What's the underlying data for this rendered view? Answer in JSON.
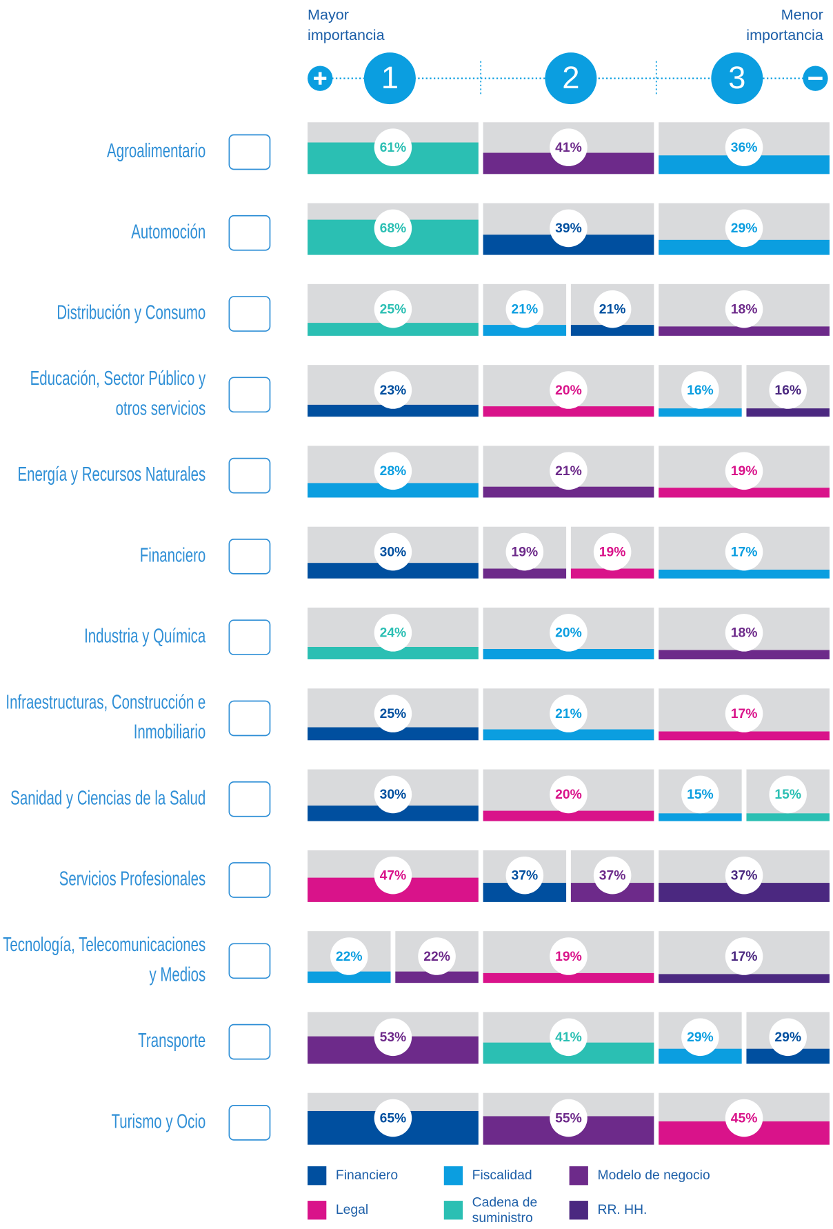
{
  "chart_data": {
    "type": "ranked-bars",
    "header": {
      "left": [
        "Mayor",
        "importancia"
      ],
      "right": [
        "Menor",
        "importancia"
      ]
    },
    "ranks": [
      "1",
      "2",
      "3"
    ],
    "ylim": [
      0,
      100
    ],
    "legend": [
      {
        "name": "Financiero",
        "color": "#004f9f"
      },
      {
        "name": "Fiscalidad",
        "color": "#0b9ee0"
      },
      {
        "name": "Modelo de negocio",
        "color": "#6d2a8a"
      },
      {
        "name": "Legal",
        "color": "#d9138a"
      },
      {
        "name": "Cadena de suministro",
        "color": "#2bbfb3"
      },
      {
        "name": "RR. HH.",
        "color": "#4b2880"
      }
    ],
    "rows": [
      {
        "name": [
          "Agroalimentario"
        ],
        "bars": [
          [
            {
              "category": "Cadena de suministro",
              "value": 61,
              "label": "61%"
            }
          ],
          [
            {
              "category": "Modelo de negocio",
              "value": 41,
              "label": "41%"
            }
          ],
          [
            {
              "category": "Fiscalidad",
              "value": 36,
              "label": "36%"
            }
          ]
        ]
      },
      {
        "name": [
          "Automoción"
        ],
        "bars": [
          [
            {
              "category": "Cadena de suministro",
              "value": 68,
              "label": "68%"
            }
          ],
          [
            {
              "category": "Financiero",
              "value": 39,
              "label": "39%"
            }
          ],
          [
            {
              "category": "Fiscalidad",
              "value": 29,
              "label": "29%"
            }
          ]
        ]
      },
      {
        "name": [
          "Distribución y Consumo"
        ],
        "bars": [
          [
            {
              "category": "Cadena de suministro",
              "value": 25,
              "label": "25%"
            }
          ],
          [
            {
              "category": "Fiscalidad",
              "value": 21,
              "label": "21%"
            },
            {
              "category": "Financiero",
              "value": 21,
              "label": "21%"
            }
          ],
          [
            {
              "category": "Modelo de negocio",
              "value": 18,
              "label": "18%"
            }
          ]
        ]
      },
      {
        "name": [
          "Educación, Sector Público y",
          "otros servicios"
        ],
        "bars": [
          [
            {
              "category": "Financiero",
              "value": 23,
              "label": "23%"
            }
          ],
          [
            {
              "category": "Legal",
              "value": 20,
              "label": "20%"
            }
          ],
          [
            {
              "category": "Fiscalidad",
              "value": 16,
              "label": "16%"
            },
            {
              "category": "RR. HH.",
              "value": 16,
              "label": "16%"
            }
          ]
        ]
      },
      {
        "name": [
          "Energía y Recursos Naturales"
        ],
        "bars": [
          [
            {
              "category": "Fiscalidad",
              "value": 28,
              "label": "28%"
            }
          ],
          [
            {
              "category": "Modelo de negocio",
              "value": 21,
              "label": "21%"
            }
          ],
          [
            {
              "category": "Legal",
              "value": 19,
              "label": "19%"
            }
          ]
        ]
      },
      {
        "name": [
          "Financiero"
        ],
        "bars": [
          [
            {
              "category": "Financiero",
              "value": 30,
              "label": "30%"
            }
          ],
          [
            {
              "category": "Modelo de negocio",
              "value": 19,
              "label": "19%"
            },
            {
              "category": "Legal",
              "value": 19,
              "label": "19%"
            }
          ],
          [
            {
              "category": "Fiscalidad",
              "value": 17,
              "label": "17%"
            }
          ]
        ]
      },
      {
        "name": [
          "Industria y Química"
        ],
        "bars": [
          [
            {
              "category": "Cadena de suministro",
              "value": 24,
              "label": "24%"
            }
          ],
          [
            {
              "category": "Fiscalidad",
              "value": 20,
              "label": "20%"
            }
          ],
          [
            {
              "category": "Modelo de negocio",
              "value": 18,
              "label": "18%"
            }
          ]
        ]
      },
      {
        "name": [
          "Infraestructuras, Construcción e",
          "Inmobiliario"
        ],
        "bars": [
          [
            {
              "category": "Financiero",
              "value": 25,
              "label": "25%"
            }
          ],
          [
            {
              "category": "Fiscalidad",
              "value": 21,
              "label": "21%"
            }
          ],
          [
            {
              "category": "Legal",
              "value": 17,
              "label": "17%"
            }
          ]
        ]
      },
      {
        "name": [
          "Sanidad y Ciencias de la Salud"
        ],
        "bars": [
          [
            {
              "category": "Financiero",
              "value": 30,
              "label": "30%"
            }
          ],
          [
            {
              "category": "Legal",
              "value": 20,
              "label": "20%"
            }
          ],
          [
            {
              "category": "Fiscalidad",
              "value": 15,
              "label": "15%"
            },
            {
              "category": "Cadena de suministro",
              "value": 15,
              "label": "15%"
            }
          ]
        ]
      },
      {
        "name": [
          "Servicios Profesionales"
        ],
        "bars": [
          [
            {
              "category": "Legal",
              "value": 47,
              "label": "47%"
            }
          ],
          [
            {
              "category": "Financiero",
              "value": 37,
              "label": "37%"
            },
            {
              "category": "Modelo de negocio",
              "value": 37,
              "label": "37%"
            }
          ],
          [
            {
              "category": "RR. HH.",
              "value": 37,
              "label": "37%"
            }
          ]
        ]
      },
      {
        "name": [
          "Tecnología, Telecomunicaciones",
          "y Medios"
        ],
        "bars": [
          [
            {
              "category": "Fiscalidad",
              "value": 22,
              "label": "22%"
            },
            {
              "category": "Modelo de negocio",
              "value": 22,
              "label": "22%"
            }
          ],
          [
            {
              "category": "Legal",
              "value": 19,
              "label": "19%"
            }
          ],
          [
            {
              "category": "RR. HH.",
              "value": 17,
              "label": "17%"
            }
          ]
        ]
      },
      {
        "name": [
          "Transporte"
        ],
        "bars": [
          [
            {
              "category": "Modelo de negocio",
              "value": 53,
              "label": "53%"
            }
          ],
          [
            {
              "category": "Cadena de suministro",
              "value": 41,
              "label": "41%"
            }
          ],
          [
            {
              "category": "Fiscalidad",
              "value": 29,
              "label": "29%"
            },
            {
              "category": "Financiero",
              "value": 29,
              "label": "29%"
            }
          ]
        ]
      },
      {
        "name": [
          "Turismo y Ocio"
        ],
        "bars": [
          [
            {
              "category": "Financiero",
              "value": 65,
              "label": "65%"
            }
          ],
          [
            {
              "category": "Modelo de negocio",
              "value": 55,
              "label": "55%"
            }
          ],
          [
            {
              "category": "Legal",
              "value": 45,
              "label": "45%"
            }
          ]
        ]
      }
    ]
  }
}
